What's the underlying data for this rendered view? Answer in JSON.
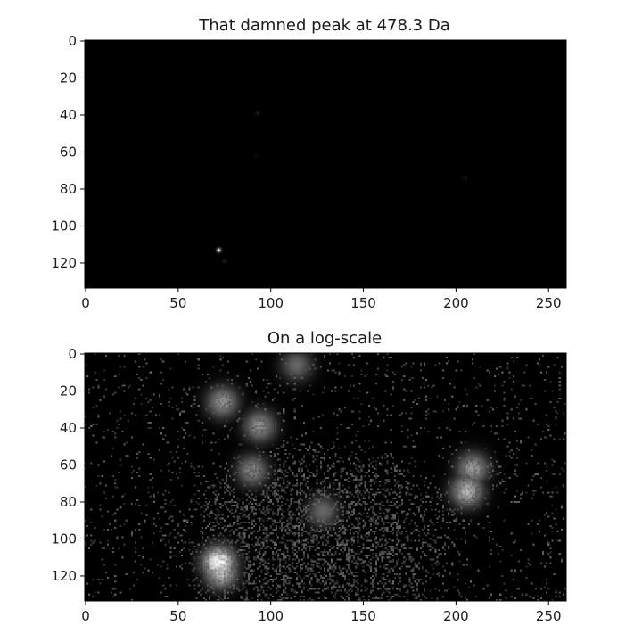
{
  "chart_data": [
    {
      "type": "heatmap",
      "title": "That damned peak at 478.3 Da",
      "colormap": "gray",
      "scale": "linear",
      "grid": false,
      "xlim": [
        0,
        260
      ],
      "ylim": [
        134,
        0
      ],
      "xticks": [
        0,
        50,
        100,
        150,
        200,
        250
      ],
      "yticks": [
        0,
        20,
        40,
        60,
        80,
        100,
        120
      ],
      "xtick_labels": [
        "0",
        "50",
        "100",
        "150",
        "200",
        "250"
      ],
      "ytick_labels": [
        "0",
        "20",
        "40",
        "60",
        "80",
        "100",
        "120"
      ],
      "background": 0,
      "hotspots": [
        {
          "x": 72,
          "y": 113,
          "intensity": 1.0
        },
        {
          "x": 93,
          "y": 39,
          "intensity": 0.12
        },
        {
          "x": 205,
          "y": 74,
          "intensity": 0.1
        },
        {
          "x": 92,
          "y": 62,
          "intensity": 0.05
        },
        {
          "x": 75,
          "y": 119,
          "intensity": 0.1
        }
      ]
    },
    {
      "type": "heatmap",
      "title": "On a log-scale",
      "colormap": "gray",
      "scale": "log",
      "grid": false,
      "xlim": [
        0,
        260
      ],
      "ylim": [
        134,
        0
      ],
      "xticks": [
        0,
        50,
        100,
        150,
        200,
        250
      ],
      "yticks": [
        0,
        20,
        40,
        60,
        80,
        100,
        120
      ],
      "xtick_labels": [
        "0",
        "50",
        "100",
        "150",
        "200",
        "250"
      ],
      "ytick_labels": [
        "0",
        "20",
        "40",
        "60",
        "80",
        "100",
        "120"
      ],
      "background": 0,
      "hotspots": [
        {
          "x": 73,
          "y": 118,
          "intensity": 0.75
        },
        {
          "x": 72,
          "y": 113,
          "intensity": 1.0
        },
        {
          "x": 94,
          "y": 39,
          "intensity": 0.55
        },
        {
          "x": 90,
          "y": 63,
          "intensity": 0.5
        },
        {
          "x": 74,
          "y": 26,
          "intensity": 0.55
        },
        {
          "x": 206,
          "y": 74,
          "intensity": 0.7
        },
        {
          "x": 209,
          "y": 62,
          "intensity": 0.6
        },
        {
          "x": 114,
          "y": 6,
          "intensity": 0.4
        },
        {
          "x": 128,
          "y": 85,
          "intensity": 0.4
        }
      ]
    }
  ]
}
